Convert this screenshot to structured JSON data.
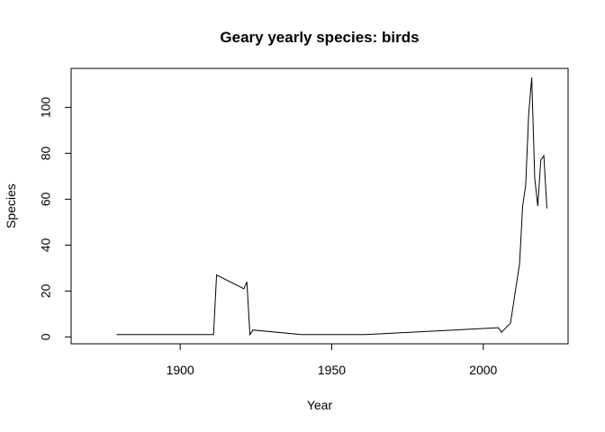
{
  "chart_data": {
    "type": "line",
    "title": "Geary yearly species: birds",
    "xlabel": "Year",
    "ylabel": "Species",
    "xlim": [
      1864,
      2028
    ],
    "ylim": [
      -3,
      117
    ],
    "xticks": [
      1900,
      1950,
      2000
    ],
    "yticks": [
      0,
      20,
      40,
      60,
      80,
      100
    ],
    "grid": false,
    "legend": "none",
    "series": [
      {
        "x": [
          1879,
          1911,
          1912,
          1921,
          1922,
          1923,
          1924,
          1940,
          1961,
          2005,
          2006,
          2009,
          2012,
          2013,
          2014,
          2015,
          2016,
          2017,
          2018,
          2019,
          2020,
          2021
        ],
        "y": [
          1,
          1,
          27,
          21,
          24,
          1,
          3,
          1,
          1,
          4,
          2,
          6,
          32,
          57,
          66,
          97,
          113,
          69,
          57,
          77,
          79,
          56
        ],
        "color": "#000000"
      }
    ]
  }
}
